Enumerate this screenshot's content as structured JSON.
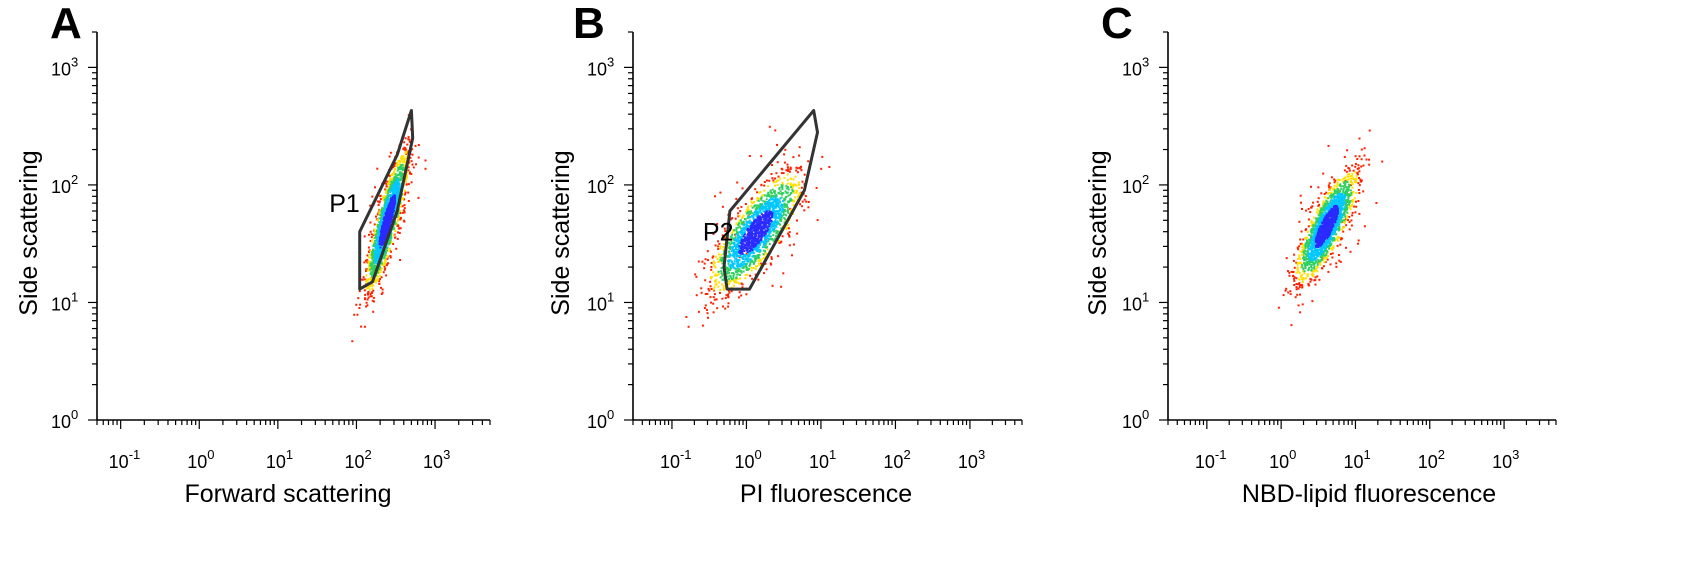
{
  "chart_data": [
    {
      "type": "scatter",
      "panel": "A",
      "xlabel": "Forward scattering",
      "ylabel": "Side scattering",
      "x_scale": "log",
      "y_scale": "log",
      "xlim": [
        0.05,
        5000
      ],
      "ylim": [
        1,
        2000
      ],
      "x_ticks": [
        {
          "value": 0.1,
          "base": "10",
          "exp": "-1"
        },
        {
          "value": 1,
          "base": "10",
          "exp": "0"
        },
        {
          "value": 10,
          "base": "10",
          "exp": "1"
        },
        {
          "value": 100,
          "base": "10",
          "exp": "2"
        },
        {
          "value": 1000,
          "base": "10",
          "exp": "3"
        }
      ],
      "y_ticks": [
        {
          "value": 1,
          "base": "10",
          "exp": "0"
        },
        {
          "value": 10,
          "base": "10",
          "exp": "1"
        },
        {
          "value": 100,
          "base": "10",
          "exp": "2"
        },
        {
          "value": 1000,
          "base": "10",
          "exp": "3"
        }
      ],
      "population": {
        "center": [
          240,
          50
        ],
        "sigma_major_log": 0.3,
        "sigma_minor_log": 0.06,
        "angle_deg": 68
      },
      "gate": {
        "label": "P1",
        "label_at": [
          45,
          70
        ],
        "vertices": [
          [
            110,
            13
          ],
          [
            160,
            15
          ],
          [
            330,
            60
          ],
          [
            520,
            250
          ],
          [
            500,
            430
          ],
          [
            330,
            180
          ],
          [
            110,
            40
          ]
        ]
      }
    },
    {
      "type": "scatter",
      "panel": "B",
      "xlabel": "PI fluorescence",
      "ylabel": "Side scattering",
      "x_scale": "log",
      "y_scale": "log",
      "xlim": [
        0.03,
        5000
      ],
      "ylim": [
        1,
        2000
      ],
      "x_ticks": [
        {
          "value": 0.1,
          "base": "10",
          "exp": "-1"
        },
        {
          "value": 1,
          "base": "10",
          "exp": "0"
        },
        {
          "value": 10,
          "base": "10",
          "exp": "1"
        },
        {
          "value": 100,
          "base": "10",
          "exp": "2"
        },
        {
          "value": 1000,
          "base": "10",
          "exp": "3"
        }
      ],
      "y_ticks": [
        {
          "value": 1,
          "base": "10",
          "exp": "0"
        },
        {
          "value": 10,
          "base": "10",
          "exp": "1"
        },
        {
          "value": 100,
          "base": "10",
          "exp": "2"
        },
        {
          "value": 1000,
          "base": "10",
          "exp": "3"
        }
      ],
      "population": {
        "center": [
          1.3,
          40
        ],
        "sigma_major_log": 0.35,
        "sigma_minor_log": 0.12,
        "angle_deg": 38
      },
      "gate": {
        "label": "P2",
        "label_at": [
          0.26,
          40
        ],
        "vertices": [
          [
            0.55,
            13
          ],
          [
            1.1,
            13
          ],
          [
            6,
            90
          ],
          [
            9,
            280
          ],
          [
            8,
            430
          ],
          [
            0.6,
            60
          ],
          [
            0.5,
            20
          ]
        ]
      }
    },
    {
      "type": "scatter",
      "panel": "C",
      "xlabel": "NBD-lipid fluorescence",
      "ylabel": "Side scattering",
      "x_scale": "log",
      "y_scale": "log",
      "xlim": [
        0.03,
        5000
      ],
      "ylim": [
        1,
        2000
      ],
      "x_ticks": [
        {
          "value": 0.1,
          "base": "10",
          "exp": "-1"
        },
        {
          "value": 1,
          "base": "10",
          "exp": "0"
        },
        {
          "value": 10,
          "base": "10",
          "exp": "1"
        },
        {
          "value": 100,
          "base": "10",
          "exp": "2"
        },
        {
          "value": 1000,
          "base": "10",
          "exp": "3"
        }
      ],
      "y_ticks": [
        {
          "value": 1,
          "base": "10",
          "exp": "0"
        },
        {
          "value": 10,
          "base": "10",
          "exp": "1"
        },
        {
          "value": 100,
          "base": "10",
          "exp": "2"
        },
        {
          "value": 1000,
          "base": "10",
          "exp": "3"
        }
      ],
      "population": {
        "center": [
          4.0,
          45
        ],
        "sigma_major_log": 0.28,
        "sigma_minor_log": 0.09,
        "angle_deg": 50
      },
      "gate": null
    }
  ],
  "colors": {
    "density_low": "#2b2bff",
    "density_mid": "#00c8ff",
    "density_high1": "#30d060",
    "density_high2": "#ffe000",
    "density_peak": "#ff2000",
    "gate_line": "#333333"
  }
}
